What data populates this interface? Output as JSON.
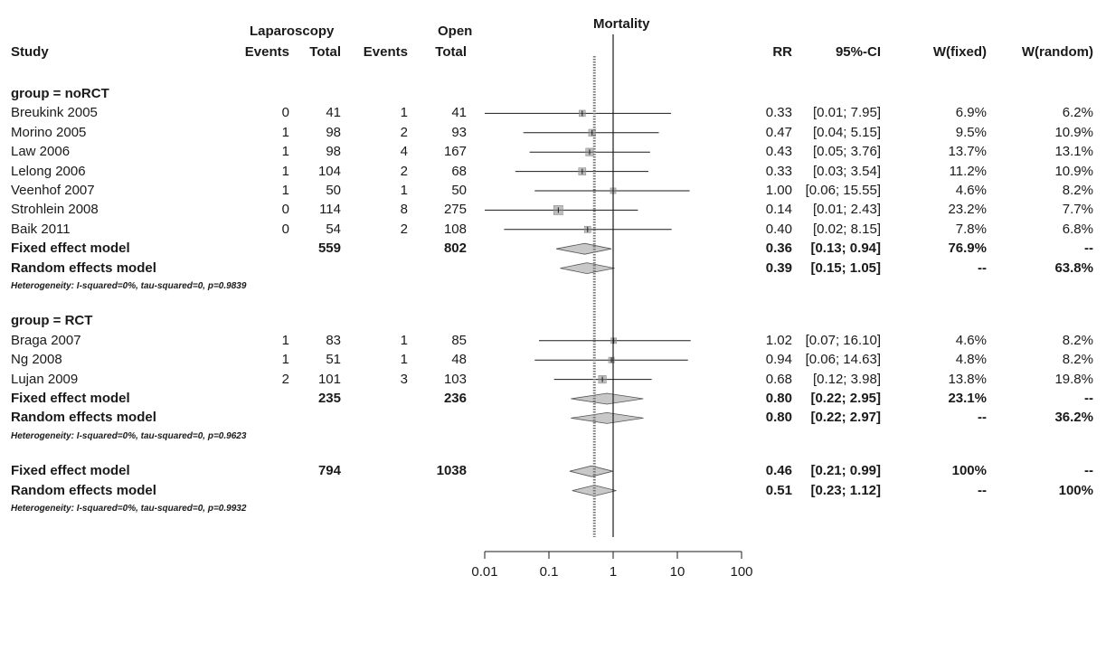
{
  "headers": {
    "study": "Study",
    "lap_group": "Laparoscopy",
    "open_group": "Open",
    "events": "Events",
    "total": "Total",
    "rr": "RR",
    "ci": "95%-CI",
    "w_fixed": "W(fixed)",
    "w_random": "W(random)"
  },
  "colors": {
    "marker": "#888888",
    "diamond": "#c8c8c8",
    "line": "#1a1a1a"
  },
  "chart_data": {
    "type": "forest",
    "title": "Mortality",
    "x_scale": "log",
    "xlim": [
      0.01,
      100
    ],
    "xticks": [
      0.01,
      0.1,
      1,
      10,
      100
    ],
    "xtick_labels": [
      "0.01",
      "0.1",
      "1",
      "10",
      "100"
    ],
    "null_line": 1,
    "pooled_random_line": 0.51,
    "rows": [
      {
        "kind": "group",
        "label": "group = noRCT"
      },
      {
        "kind": "study",
        "label": "Breukink 2005",
        "lap_events": "0",
        "lap_total": "41",
        "open_events": "1",
        "open_total": "41",
        "rr": 0.33,
        "lo": 0.01,
        "hi": 7.95,
        "rr_text": "0.33",
        "ci_text": "[0.01; 7.95]",
        "wf": "6.9%",
        "wr": "6.2%",
        "weight": 6.9
      },
      {
        "kind": "study",
        "label": "Morino 2005",
        "lap_events": "1",
        "lap_total": "98",
        "open_events": "2",
        "open_total": "93",
        "rr": 0.47,
        "lo": 0.04,
        "hi": 5.15,
        "rr_text": "0.47",
        "ci_text": "[0.04; 5.15]",
        "wf": "9.5%",
        "wr": "10.9%",
        "weight": 9.5
      },
      {
        "kind": "study",
        "label": "Law 2006",
        "lap_events": "1",
        "lap_total": "98",
        "open_events": "4",
        "open_total": "167",
        "rr": 0.43,
        "lo": 0.05,
        "hi": 3.76,
        "rr_text": "0.43",
        "ci_text": "[0.05; 3.76]",
        "wf": "13.7%",
        "wr": "13.1%",
        "weight": 13.7
      },
      {
        "kind": "study",
        "label": "Lelong 2006",
        "lap_events": "1",
        "lap_total": "104",
        "open_events": "2",
        "open_total": "68",
        "rr": 0.33,
        "lo": 0.03,
        "hi": 3.54,
        "rr_text": "0.33",
        "ci_text": "[0.03; 3.54]",
        "wf": "11.2%",
        "wr": "10.9%",
        "weight": 11.2
      },
      {
        "kind": "study",
        "label": "Veenhof 2007",
        "lap_events": "1",
        "lap_total": "50",
        "open_events": "1",
        "open_total": "50",
        "rr": 1.0,
        "lo": 0.06,
        "hi": 15.55,
        "rr_text": "1.00",
        "ci_text": "[0.06; 15.55]",
        "wf": "4.6%",
        "wr": "8.2%",
        "weight": 4.6
      },
      {
        "kind": "study",
        "label": "Strohlein 2008",
        "lap_events": "0",
        "lap_total": "114",
        "open_events": "8",
        "open_total": "275",
        "rr": 0.14,
        "lo": 0.01,
        "hi": 2.43,
        "rr_text": "0.14",
        "ci_text": "[0.01; 2.43]",
        "wf": "23.2%",
        "wr": "7.7%",
        "weight": 23.2
      },
      {
        "kind": "study",
        "label": "Baik 2011",
        "lap_events": "0",
        "lap_total": "54",
        "open_events": "2",
        "open_total": "108",
        "rr": 0.4,
        "lo": 0.02,
        "hi": 8.15,
        "rr_text": "0.40",
        "ci_text": "[0.02; 8.15]",
        "wf": "7.8%",
        "wr": "6.8%",
        "weight": 7.8
      },
      {
        "kind": "pooled",
        "label": "Fixed effect model",
        "lap_total": "559",
        "open_total": "802",
        "rr": 0.36,
        "lo": 0.13,
        "hi": 0.94,
        "rr_text": "0.36",
        "ci_text": "[0.13; 0.94]",
        "wf": "76.9%",
        "wr": "--"
      },
      {
        "kind": "pooled",
        "label": "Random effects model",
        "rr": 0.39,
        "lo": 0.15,
        "hi": 1.05,
        "rr_text": "0.39",
        "ci_text": "[0.15; 1.05]",
        "wf": "--",
        "wr": "63.8%"
      },
      {
        "kind": "het",
        "label": "Heterogeneity: I-squared=0%, tau-squared=0, p=0.9839"
      },
      {
        "kind": "gap"
      },
      {
        "kind": "group",
        "label": "group = RCT"
      },
      {
        "kind": "study",
        "label": "Braga 2007",
        "lap_events": "1",
        "lap_total": "83",
        "open_events": "1",
        "open_total": "85",
        "rr": 1.02,
        "lo": 0.07,
        "hi": 16.1,
        "rr_text": "1.02",
        "ci_text": "[0.07; 16.10]",
        "wf": "4.6%",
        "wr": "8.2%",
        "weight": 4.6
      },
      {
        "kind": "study",
        "label": "Ng 2008",
        "lap_events": "1",
        "lap_total": "51",
        "open_events": "1",
        "open_total": "48",
        "rr": 0.94,
        "lo": 0.06,
        "hi": 14.63,
        "rr_text": "0.94",
        "ci_text": "[0.06; 14.63]",
        "wf": "4.8%",
        "wr": "8.2%",
        "weight": 4.8
      },
      {
        "kind": "study",
        "label": "Lujan 2009",
        "lap_events": "2",
        "lap_total": "101",
        "open_events": "3",
        "open_total": "103",
        "rr": 0.68,
        "lo": 0.12,
        "hi": 3.98,
        "rr_text": "0.68",
        "ci_text": "[0.12; 3.98]",
        "wf": "13.8%",
        "wr": "19.8%",
        "weight": 13.8
      },
      {
        "kind": "pooled",
        "label": "Fixed effect model",
        "lap_total": "235",
        "open_total": "236",
        "rr": 0.8,
        "lo": 0.22,
        "hi": 2.95,
        "rr_text": "0.80",
        "ci_text": "[0.22; 2.95]",
        "wf": "23.1%",
        "wr": "--"
      },
      {
        "kind": "pooled",
        "label": "Random effects model",
        "rr": 0.8,
        "lo": 0.22,
        "hi": 2.97,
        "rr_text": "0.80",
        "ci_text": "[0.22; 2.97]",
        "wf": "--",
        "wr": "36.2%"
      },
      {
        "kind": "het",
        "label": "Heterogeneity: I-squared=0%, tau-squared=0, p=0.9623"
      },
      {
        "kind": "gap"
      },
      {
        "kind": "pooled",
        "label": "Fixed effect model",
        "lap_total": "794",
        "open_total": "1038",
        "rr": 0.46,
        "lo": 0.21,
        "hi": 0.99,
        "rr_text": "0.46",
        "ci_text": "[0.21; 0.99]",
        "wf": "100%",
        "wr": "--"
      },
      {
        "kind": "pooled",
        "label": "Random effects model",
        "rr": 0.51,
        "lo": 0.23,
        "hi": 1.12,
        "rr_text": "0.51",
        "ci_text": "[0.23; 1.12]",
        "wf": "--",
        "wr": "100%"
      },
      {
        "kind": "het",
        "label": "Heterogeneity: I-squared=0%, tau-squared=0, p=0.9932"
      }
    ]
  }
}
